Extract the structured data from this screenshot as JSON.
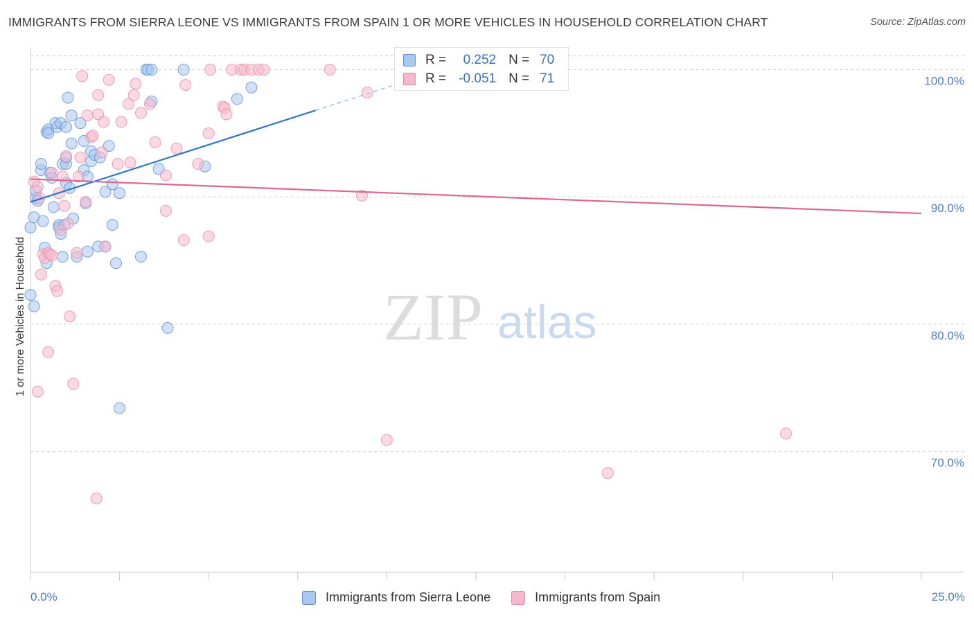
{
  "title": "IMMIGRANTS FROM SIERRA LEONE VS IMMIGRANTS FROM SPAIN 1 OR MORE VEHICLES IN HOUSEHOLD CORRELATION CHART",
  "source": "Source: ZipAtlas.com",
  "watermark": {
    "zip": "ZIP",
    "atlas": "atlas"
  },
  "colors": {
    "blue_fill": "#a9c8f0",
    "blue_stroke": "#5a8fd6",
    "blue_line": "#2f74d0",
    "pink_fill": "#f5b9cc",
    "pink_stroke": "#e889a8",
    "pink_line": "#e0658f",
    "tick_label": "#4a7cc4",
    "grid": "#d5d5d5"
  },
  "legend": {
    "r_label": "R =",
    "n_label": "N =",
    "rows": [
      {
        "r": "0.252",
        "n": "70"
      },
      {
        "r": "-0.051",
        "n": "71"
      }
    ]
  },
  "chart_data": {
    "type": "scatter",
    "title": "IMMIGRANTS FROM SIERRA LEONE VS IMMIGRANTS FROM SPAIN 1 OR MORE VEHICLES IN HOUSEHOLD CORRELATION CHART",
    "xlabel": "",
    "ylabel": "1 or more Vehicles in Household",
    "xlim": [
      0,
      25
    ],
    "ylim": [
      60.5,
      101.5
    ],
    "x_tick_labels": [
      "0.0%",
      "25.0%"
    ],
    "y_ticks": [
      70,
      80,
      90,
      100
    ],
    "y_tick_labels": [
      "70.0%",
      "80.0%",
      "90.0%",
      "100.0%"
    ],
    "grid": "horizontal dashed",
    "legend_position": "top-center",
    "series": [
      {
        "name": "Immigrants from Sierra Leone",
        "r": 0.252,
        "n": 70,
        "trend": {
          "x": [
            0.0,
            8.0
          ],
          "y": [
            89.6,
            96.8
          ]
        },
        "trend_dashed": {
          "x": [
            8.0,
            12.0
          ],
          "y": [
            96.8,
            100.4
          ]
        },
        "points": [
          [
            0.0,
            87.6
          ],
          [
            0.0,
            82.3
          ],
          [
            0.1,
            81.4
          ],
          [
            0.1,
            88.4
          ],
          [
            0.15,
            89.9
          ],
          [
            0.15,
            90.5
          ],
          [
            0.2,
            89.7
          ],
          [
            0.3,
            92.1
          ],
          [
            0.3,
            92.6
          ],
          [
            0.35,
            88.1
          ],
          [
            0.4,
            86.0
          ],
          [
            0.45,
            84.8
          ],
          [
            0.45,
            95.1
          ],
          [
            0.5,
            95.3
          ],
          [
            0.5,
            95.0
          ],
          [
            0.55,
            91.9
          ],
          [
            0.6,
            91.5
          ],
          [
            0.65,
            89.2
          ],
          [
            0.7,
            95.8
          ],
          [
            0.75,
            95.5
          ],
          [
            0.8,
            87.8
          ],
          [
            0.8,
            87.6
          ],
          [
            0.85,
            95.8
          ],
          [
            0.85,
            87.1
          ],
          [
            0.9,
            92.6
          ],
          [
            0.9,
            85.3
          ],
          [
            0.95,
            87.8
          ],
          [
            1.0,
            95.5
          ],
          [
            1.0,
            91.1
          ],
          [
            1.0,
            92.6
          ],
          [
            1.0,
            93.1
          ],
          [
            1.05,
            97.8
          ],
          [
            1.1,
            90.7
          ],
          [
            1.15,
            94.2
          ],
          [
            1.15,
            96.4
          ],
          [
            1.2,
            88.3
          ],
          [
            1.3,
            85.3
          ],
          [
            1.4,
            95.8
          ],
          [
            1.5,
            92.1
          ],
          [
            1.5,
            94.4
          ],
          [
            1.55,
            89.5
          ],
          [
            1.6,
            91.6
          ],
          [
            1.6,
            85.7
          ],
          [
            1.7,
            92.8
          ],
          [
            1.7,
            93.6
          ],
          [
            1.8,
            93.3
          ],
          [
            1.9,
            86.1
          ],
          [
            1.95,
            93.1
          ],
          [
            2.1,
            86.1
          ],
          [
            2.1,
            90.4
          ],
          [
            2.2,
            94.0
          ],
          [
            2.3,
            91.0
          ],
          [
            2.3,
            87.8
          ],
          [
            2.4,
            84.8
          ],
          [
            2.5,
            90.3
          ],
          [
            2.5,
            73.4
          ],
          [
            3.1,
            85.3
          ],
          [
            3.25,
            100.0
          ],
          [
            3.3,
            100.0
          ],
          [
            3.4,
            100.0
          ],
          [
            3.4,
            97.5
          ],
          [
            3.6,
            92.2
          ],
          [
            3.85,
            79.7
          ],
          [
            4.3,
            100.0
          ],
          [
            4.9,
            92.4
          ],
          [
            5.8,
            97.7
          ],
          [
            6.2,
            98.6
          ]
        ]
      },
      {
        "name": "Immigrants from Spain",
        "r": -0.051,
        "n": 71,
        "trend": {
          "x": [
            0.0,
            25.0
          ],
          "y": [
            91.4,
            88.7
          ]
        },
        "points": [
          [
            0.1,
            91.2
          ],
          [
            0.2,
            74.7
          ],
          [
            0.2,
            90.8
          ],
          [
            0.25,
            89.9
          ],
          [
            0.3,
            83.9
          ],
          [
            0.35,
            85.5
          ],
          [
            0.4,
            85.2
          ],
          [
            0.5,
            85.6
          ],
          [
            0.5,
            77.8
          ],
          [
            0.55,
            85.5
          ],
          [
            0.6,
            91.9
          ],
          [
            0.6,
            85.4
          ],
          [
            0.7,
            83.0
          ],
          [
            0.75,
            82.6
          ],
          [
            0.8,
            90.3
          ],
          [
            0.85,
            87.4
          ],
          [
            0.9,
            91.6
          ],
          [
            0.95,
            89.3
          ],
          [
            1.0,
            93.2
          ],
          [
            1.05,
            87.9
          ],
          [
            1.1,
            80.6
          ],
          [
            1.2,
            75.3
          ],
          [
            1.3,
            85.6
          ],
          [
            1.35,
            91.6
          ],
          [
            1.4,
            93.1
          ],
          [
            1.45,
            99.5
          ],
          [
            1.55,
            89.6
          ],
          [
            1.6,
            96.4
          ],
          [
            1.7,
            94.7
          ],
          [
            1.75,
            94.8
          ],
          [
            1.85,
            66.3
          ],
          [
            1.9,
            96.5
          ],
          [
            1.9,
            98.0
          ],
          [
            2.0,
            93.5
          ],
          [
            2.05,
            95.9
          ],
          [
            2.1,
            86.1
          ],
          [
            2.2,
            99.2
          ],
          [
            2.45,
            92.6
          ],
          [
            2.55,
            95.9
          ],
          [
            2.75,
            97.3
          ],
          [
            2.8,
            92.7
          ],
          [
            2.9,
            98.0
          ],
          [
            2.95,
            98.9
          ],
          [
            3.1,
            96.6
          ],
          [
            3.35,
            97.3
          ],
          [
            3.5,
            94.3
          ],
          [
            3.8,
            91.7
          ],
          [
            3.8,
            88.9
          ],
          [
            4.1,
            93.8
          ],
          [
            4.3,
            86.6
          ],
          [
            4.35,
            98.8
          ],
          [
            4.7,
            92.6
          ],
          [
            5.0,
            95.0
          ],
          [
            5.0,
            86.9
          ],
          [
            5.05,
            100.0
          ],
          [
            5.4,
            97.1
          ],
          [
            5.45,
            97.0
          ],
          [
            5.5,
            96.5
          ],
          [
            5.65,
            100.0
          ],
          [
            5.9,
            100.0
          ],
          [
            6.0,
            100.0
          ],
          [
            6.2,
            100.0
          ],
          [
            6.4,
            100.0
          ],
          [
            6.55,
            100.0
          ],
          [
            8.4,
            100.0
          ],
          [
            9.3,
            90.1
          ],
          [
            9.45,
            98.2
          ],
          [
            10.0,
            70.9
          ],
          [
            16.2,
            68.3
          ],
          [
            21.2,
            71.4
          ]
        ]
      }
    ]
  }
}
